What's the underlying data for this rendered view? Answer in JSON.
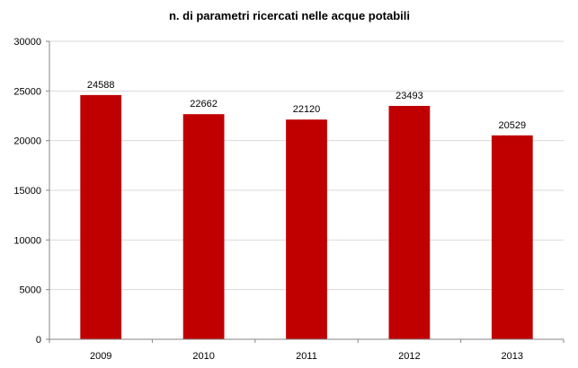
{
  "chart_data": {
    "type": "bar",
    "title": "n. di parametri ricercati nelle acque potabili",
    "categories": [
      "2009",
      "2010",
      "2011",
      "2012",
      "2013"
    ],
    "values": [
      24588,
      22662,
      22120,
      23493,
      20529
    ],
    "ylim": [
      0,
      30000
    ],
    "yticks": [
      0,
      5000,
      10000,
      15000,
      20000,
      25000,
      30000
    ],
    "grid": true,
    "legend": "none",
    "bar_color": "#c00000",
    "data_labels": true
  }
}
